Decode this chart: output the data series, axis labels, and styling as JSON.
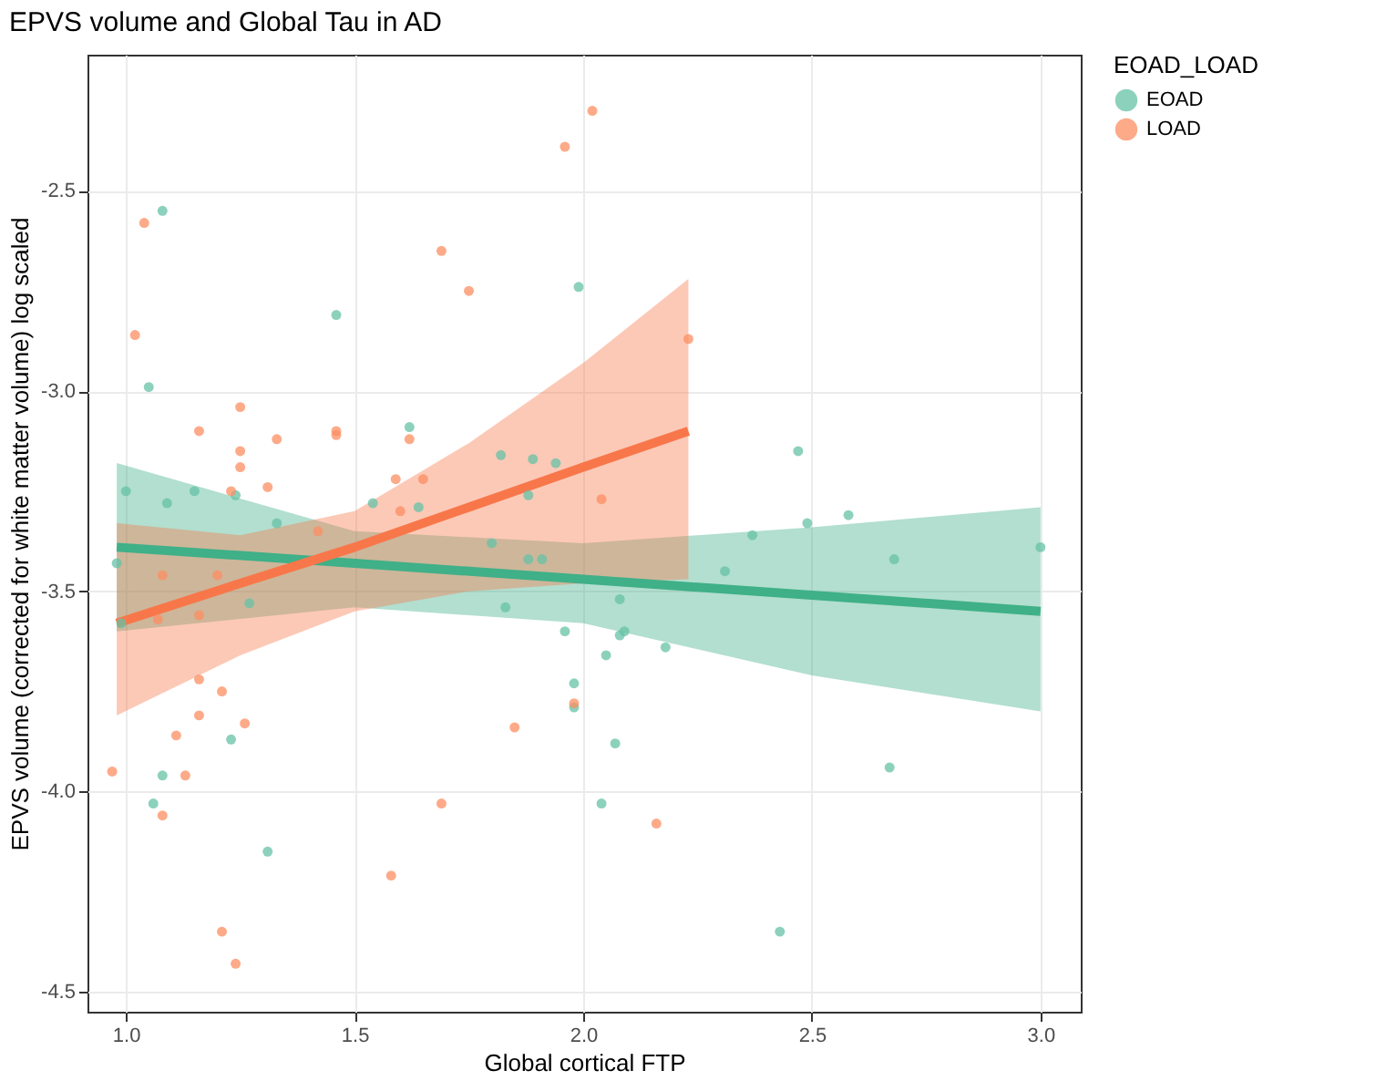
{
  "chart_data": {
    "type": "scatter",
    "title": "EPVS volume and Global Tau in AD",
    "xlabel": "Global cortical FTP",
    "ylabel": "EPVS volume (corrected for white matter volume) log scaled",
    "legend_title": "EOAD_LOAD",
    "legend": "right",
    "grid": true,
    "marker": "circle",
    "xlim": [
      0.916,
      3.088
    ],
    "ylim": [
      -4.55,
      -2.16
    ],
    "xticks": [
      {
        "value": 1,
        "label": "1.0"
      },
      {
        "value": 1.5,
        "label": "1.5"
      },
      {
        "value": 2,
        "label": "2.0"
      },
      {
        "value": 2.5,
        "label": "2.5"
      },
      {
        "value": 3,
        "label": "3.0"
      }
    ],
    "yticks": [
      {
        "value": -2.5,
        "label": "-2.5"
      },
      {
        "value": -3,
        "label": "-3.0"
      },
      {
        "value": -3.5,
        "label": "-3.5"
      },
      {
        "value": -4,
        "label": "-4.0"
      },
      {
        "value": -4.5,
        "label": "-4.5"
      }
    ],
    "series": [
      {
        "name": "EOAD",
        "color": "#66c2a5",
        "x": [
          1.08,
          1.46,
          1.99,
          1.05,
          1.62,
          1.0,
          1.09,
          1.15,
          1.24,
          1.54,
          1.64,
          1.33,
          1.82,
          1.89,
          1.94,
          1.88,
          1.8,
          2.47,
          2.37,
          2.49,
          2.58,
          3.0,
          0.98,
          1.27,
          0.99,
          1.88,
          1.91,
          1.83,
          1.96,
          1.98,
          1.98,
          1.23,
          1.08,
          1.06,
          1.31,
          2.68,
          2.31,
          2.08,
          2.08,
          2.09,
          2.05,
          2.18,
          2.07,
          2.67,
          2.04,
          2.43
        ],
        "values": [
          -2.55,
          -2.81,
          -2.74,
          -2.99,
          -3.09,
          -3.25,
          -3.28,
          -3.25,
          -3.26,
          -3.28,
          -3.29,
          -3.33,
          -3.16,
          -3.17,
          -3.18,
          -3.26,
          -3.38,
          -3.15,
          -3.36,
          -3.33,
          -3.31,
          -3.39,
          -3.43,
          -3.53,
          -3.58,
          -3.42,
          -3.42,
          -3.54,
          -3.6,
          -3.73,
          -3.79,
          -3.87,
          -3.96,
          -4.03,
          -4.15,
          -3.42,
          -3.45,
          -3.52,
          -3.61,
          -3.6,
          -3.66,
          -3.64,
          -3.88,
          -3.94,
          -4.03,
          -4.35
        ]
      },
      {
        "name": "LOAD",
        "color": "#fc8d62",
        "x": [
          1.04,
          2.02,
          1.96,
          1.69,
          1.75,
          1.02,
          2.23,
          1.16,
          1.25,
          1.25,
          1.33,
          1.25,
          1.46,
          1.46,
          1.31,
          1.23,
          1.59,
          1.65,
          2.04,
          1.6,
          1.42,
          1.62,
          1.08,
          1.2,
          1.07,
          1.16,
          1.16,
          1.21,
          1.16,
          1.11,
          1.26,
          0.97,
          1.13,
          1.08,
          1.21,
          1.24,
          1.69,
          1.58,
          1.85,
          1.98,
          2.16
        ],
        "values": [
          -2.58,
          -2.3,
          -2.39,
          -2.65,
          -2.75,
          -2.86,
          -2.87,
          -3.1,
          -3.04,
          -3.15,
          -3.12,
          -3.19,
          -3.1,
          -3.11,
          -3.24,
          -3.25,
          -3.22,
          -3.22,
          -3.27,
          -3.3,
          -3.35,
          -3.12,
          -3.46,
          -3.46,
          -3.57,
          -3.56,
          -3.72,
          -3.75,
          -3.81,
          -3.86,
          -3.83,
          -3.95,
          -3.96,
          -4.06,
          -4.35,
          -4.43,
          -4.03,
          -4.21,
          -3.84,
          -3.78,
          -4.08
        ]
      },
      {
        "type": "line",
        "marker": "none",
        "line_style": "solid",
        "color": "#3fb088",
        "x": [
          0.98,
          1.5,
          2.0,
          2.5,
          3.0
        ],
        "values": [
          -3.39,
          -3.43,
          -3.47,
          -3.51,
          -3.55
        ],
        "lower": [
          -3.6,
          -3.54,
          -3.58,
          -3.71,
          -3.8
        ],
        "upper": [
          -3.18,
          -3.35,
          -3.38,
          -3.34,
          -3.29
        ]
      },
      {
        "type": "line",
        "marker": "none",
        "line_style": "solid",
        "color": "#f8774a",
        "x": [
          0.98,
          1.25,
          1.5,
          1.75,
          2.0,
          2.23
        ],
        "values": [
          -3.58,
          -3.48,
          -3.39,
          -3.29,
          -3.19,
          -3.1
        ],
        "lower": [
          -3.81,
          -3.66,
          -3.55,
          -3.5,
          -3.48,
          -3.47
        ],
        "upper": [
          -3.33,
          -3.36,
          -3.3,
          -3.13,
          -2.93,
          -2.72
        ]
      }
    ]
  }
}
